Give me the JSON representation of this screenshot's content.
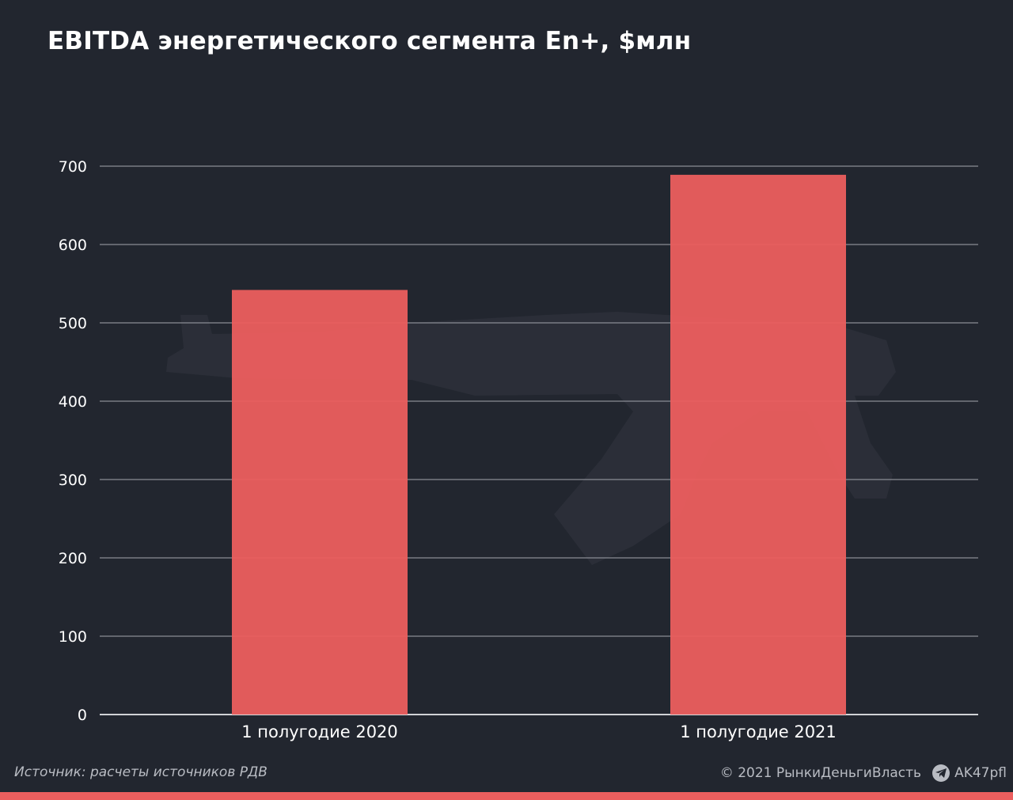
{
  "chart_data": {
    "type": "bar",
    "title": "EBITDA энергетического сегмента En+, $млн",
    "categories": [
      "1 полугодие 2020",
      "1 полугодие 2021"
    ],
    "values": [
      542,
      689
    ],
    "ylim": [
      0,
      700
    ],
    "yticks": [
      0,
      100,
      200,
      300,
      400,
      500,
      600,
      700
    ],
    "grid": true,
    "bar_color": "#ec5e5e",
    "grid_color": "#8a8d94",
    "background": "#22262f"
  },
  "footer": {
    "source": "Источник: расчеты источников РДВ",
    "copyright": "© 2021  РынкиДеньгиВласть",
    "channel": "AK47pfl",
    "channel_icon": "telegram-icon"
  }
}
